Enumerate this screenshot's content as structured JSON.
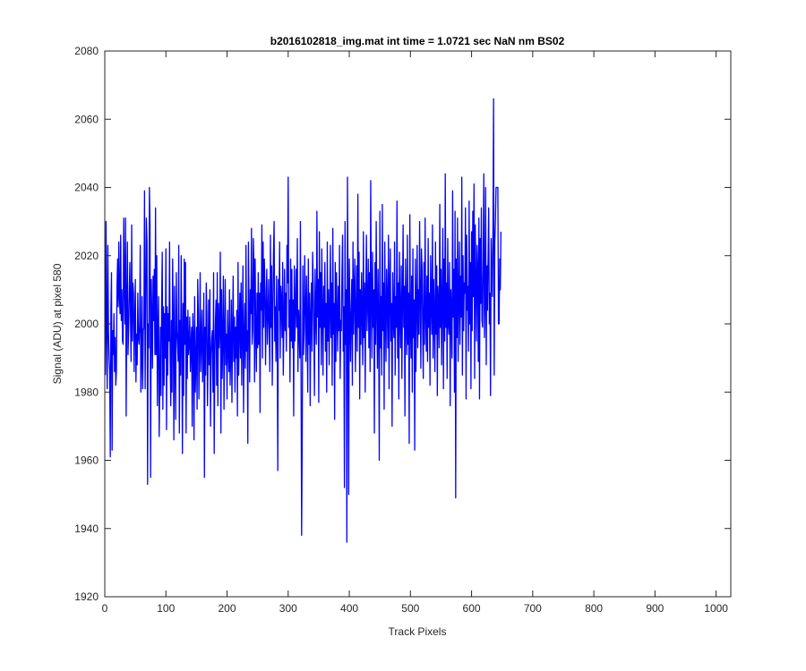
{
  "chart_data": {
    "type": "line",
    "title": "b2016102818_img.mat int time = 1.0721 sec  NaN nm BS02",
    "xlabel": "Track Pixels",
    "ylabel": "Signal (ADU) at pixel 580",
    "xlim": [
      0,
      1024
    ],
    "ylim": [
      1920,
      2080
    ],
    "xticks": [
      0,
      100,
      200,
      300,
      400,
      500,
      600,
      700,
      800,
      900,
      1000
    ],
    "yticks": [
      1920,
      1940,
      1960,
      1980,
      2000,
      2020,
      2040,
      2060,
      2080
    ],
    "xtick_labels": [
      "0",
      "100",
      "200",
      "300",
      "400",
      "500",
      "600",
      "700",
      "800",
      "900",
      "1000"
    ],
    "ytick_labels": [
      "1920",
      "1940",
      "1960",
      "1980",
      "2000",
      "2020",
      "2040",
      "2060",
      "2080"
    ],
    "grid": false,
    "series_color": "#0000ff",
    "series": [
      {
        "x_start": 1,
        "x_step": 1,
        "values": [
          1985,
          2030,
          1999,
          1981,
          2023,
          1998,
          1990,
          1986,
          1961,
          2004,
          2015,
          1963,
          1998,
          1991,
          2003,
          1986,
          1996,
          1982,
          1986,
          2011,
          2019,
          2005,
          2024,
          2008,
          2003,
          2026,
          2001,
          2010,
          1995,
          1994,
          2031,
          2012,
          2000,
          2031,
          1973,
          2006,
          2024,
          1991,
          1998,
          2008,
          2018,
          2003,
          1989,
          2029,
          1995,
          2012,
          2009,
          1986,
          2001,
          2013,
          1983,
          1997,
          1988,
          2009,
          1996,
          1994,
          2000,
          2023,
          1980,
          1990,
          2008,
          1981,
          1998,
          1999,
          2039,
          1981,
          2006,
          2031,
          2024,
          1953,
          2000,
          1993,
          2040,
          2029,
          1955,
          2013,
          2003,
          1987,
          2014,
          2001,
          2016,
          1991,
          2034,
          1991,
          2020,
          1976,
          1998,
          2008,
          1967,
          1983,
          1999,
          1979,
          2006,
          2021,
          1975,
          2005,
          1982,
          2003,
          1990,
          2022,
          1969,
          2005,
          1985,
          2003,
          1995,
          2024,
          1989,
          1976,
          2001,
          1980,
          2019,
          2000,
          1966,
          2011,
          1991,
          1972,
          2015,
          1998,
          1994,
          1989,
          2023,
          1968,
          2001,
          1985,
          2020,
          1996,
          1962,
          2006,
          1979,
          2019,
          1994,
          2018,
          1968,
          2002,
          1984,
          2004,
          1991,
          1994,
          2002,
          1986,
          1994,
          1999,
          1970,
          2003,
          1996,
          1966,
          2008,
          1980,
          1988,
          1999,
          1975,
          2013,
          2003,
          1978,
          1994,
          2015,
          1986,
          1995,
          2004,
          1983,
          1990,
          2009,
          1955,
          1999,
          1985,
          2012,
          2003,
          1976,
          1990,
          2007,
          1988,
          2010,
          1970,
          1991,
          1996,
          1998,
          1980,
          2015,
          1962,
          1990,
          2001,
          2007,
          1982,
          2015,
          1976,
          2006,
          1993,
          1999,
          2021,
          1968,
          2010,
          1984,
          1996,
          2014,
          1975,
          1995,
          2013,
          1988,
          1997,
          1978,
          2004,
          1993,
          1986,
          2010,
          1982,
          1991,
          2007,
          1977,
          1998,
          2014,
          1989,
          2002,
          1980,
          1999,
          1990,
          2004,
          1973,
          2018,
          1985,
          1997,
          2009,
          1990,
          2012,
          1982,
          2000,
          2017,
          1974,
          1996,
          2006,
          1987,
          2023,
          1992,
          1998,
          1965,
          2024,
          2004,
          1983,
          2010,
          2003,
          2028,
          1994,
          1998,
          2025,
          2018,
          1983,
          2019,
          1997,
          1986,
          2009,
          1993,
          2015,
          1994,
          2009,
          1974,
          2012,
          2004,
          2029,
          1990,
          2024,
          1999,
          2019,
          2010,
          1988,
          2006,
          2016,
          1994,
          2002,
          2013,
          1998,
          1986,
          2026,
          1999,
          2017,
          1982,
          2003,
          2021,
          2030,
          1995,
          2005,
          1989,
          2014,
          1999,
          1957,
          2013,
          2004,
          2024,
          1990,
          2011,
          2007,
          1996,
          2018,
          1985,
          2000,
          2016,
          1998,
          2009,
          1992,
          2023,
          2012,
          2043,
          1999,
          2007,
          1983,
          2019,
          1995,
          2016,
          1993,
          2007,
          1973,
          2017,
          1995,
          2004,
          2016,
          1999,
          2025,
          1986,
          2004,
          1999,
          1990,
          2030,
          1988,
          1938,
          1968,
          2017,
          1991,
          1998,
          2020,
          2005,
          1989,
          2014,
          2001,
          1980,
          2019,
          1994,
          2009,
          1976,
          2002,
          2012,
          1992,
          2021,
          2011,
          1998,
          1979,
          2016,
          2002,
          1994,
          2033,
          2002,
          2013,
          1977,
          2027,
          1999,
          2015,
          1988,
          2022,
          2004,
          1985,
          2011,
          1999,
          2018,
          1992,
          2006,
          1980,
          2024,
          1995,
          2010,
          1988,
          2004,
          2023,
          1996,
          2012,
          1982,
          2028,
          1997,
          2006,
          1972,
          2018,
          1989,
          2015,
          2003,
          1992,
          2011,
          1998,
          2023,
          1984,
          2001,
          1998,
          2015,
          2026,
          1992,
          2005,
          1952,
          2030,
          1994,
          2010,
          1936,
          2043,
          2009,
          1950,
          2019,
          2004,
          1989,
          2003,
          2013,
          1982,
          2024,
          1997,
          2009,
          2019,
          1986,
          2003,
          2017,
          1992,
          2038,
          1999,
          2021,
          1978,
          2010,
          1994,
          2015,
          2003,
          1988,
          2027,
          1996,
          2012,
          1980,
          2009,
          2026,
          1998,
          2006,
          2019,
          1993,
          2015,
          1986,
          2042,
          2006,
          1990,
          2021,
          1999,
          2010,
          1968,
          2018,
          1994,
          2030,
          2004,
          1987,
          2016,
          2001,
          1960,
          2033,
          1993,
          2008,
          1985,
          2035,
          1998,
          2012,
          1975,
          2024,
          2003,
          1989,
          2016,
          2006,
          1993,
          2026,
          1981,
          2010,
          2022,
          1995,
          2006,
          1970,
          2015,
          2002,
          1996,
          2024,
          1985,
          2008,
          1999,
          2036,
          1990,
          2012,
          1978,
          2021,
          2002,
          1993,
          2017,
          1984,
          2006,
          2029,
          1999,
          2011,
          1973,
          2019,
          2003,
          1991,
          2026,
          1994,
          2009,
          1965,
          2032,
          2000,
          1990,
          2014,
          1980,
          2022,
          1996,
          2007,
          1963,
          2019,
          1986,
          2005,
          2023,
          1993,
          2010,
          1997,
          2030,
          2008,
          1987,
          2022,
          2016,
          1998,
          1984,
          2018,
          1994,
          2031,
          2002,
          1992,
          2014,
          1989,
          2025,
          1999,
          2009,
          1982,
          2020,
          2006,
          1997,
          2029,
          1990,
          2013,
          2003,
          1986,
          2024,
          1997,
          2017,
          1979,
          2011,
          2005,
          1993,
          2035,
          1999,
          2016,
          1988,
          2008,
          2028,
          1981,
          2019,
          1995,
          2044,
          1999,
          2012,
          1984,
          2025,
          2000,
          1997,
          2018,
          1976,
          2010,
          2004,
          1990,
          2039,
          2002,
          2016,
          1980,
          2033,
          1949,
          2019,
          1996,
          2031,
          1989,
          2008,
          2024,
          1994,
          2014,
          2002,
          2043,
          1985,
          2020,
          1998,
          2012,
          2009,
          2034,
          1978,
          2026,
          2004,
          2011,
          1992,
          2036,
          2000,
          2018,
          1981,
          2027,
          1998,
          2033,
          2008,
          2041,
          1984,
          2029,
          2013,
          1995,
          2023,
          2016,
          1989,
          2031,
          1978,
          2025,
          2006,
          2034,
          2001,
          1999,
          2018,
          2044,
          1996,
          2008,
          2040,
          1988,
          2017,
          2004,
          2019,
          2034,
          2000,
          2009,
          1979,
          2025,
          2013,
          2008,
          2029,
          2066,
          1985,
          2024,
          2030,
          2040,
          2040,
          2040,
          2040,
          2000,
          2000,
          2019,
          2010,
          2027
        ]
      }
    ]
  }
}
